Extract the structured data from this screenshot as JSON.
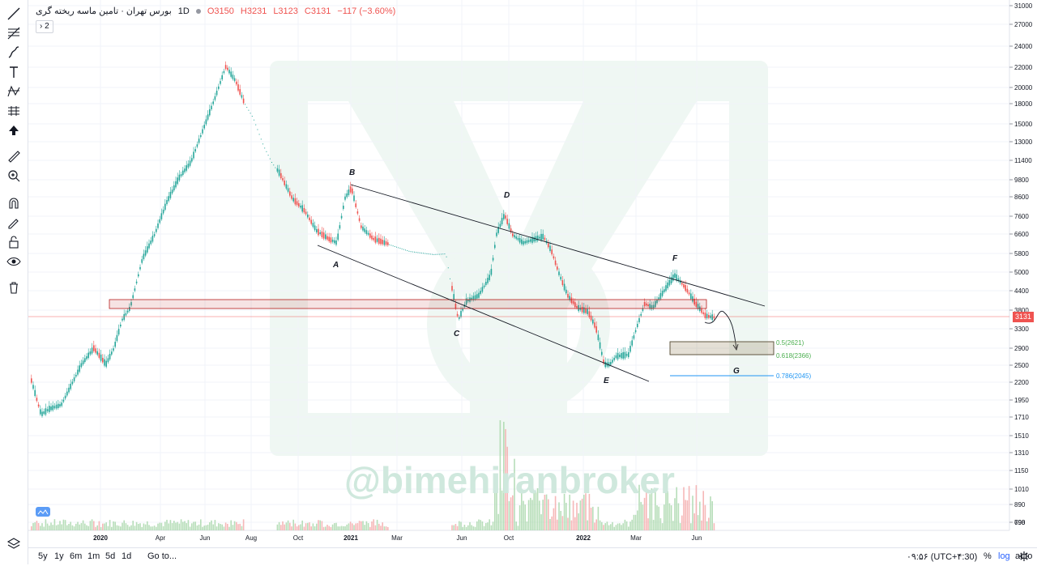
{
  "legend": {
    "symbol": "بورس تهران · تامین ماسه ریخته گری",
    "interval": "1D",
    "open": "O3150",
    "high": "H3231",
    "low": "L3123",
    "close": "C3131",
    "change": "−117 (−3.60%)"
  },
  "study_count": "› 2",
  "price_axis": {
    "labels": [
      "31000",
      "27000",
      "24000",
      "22000",
      "20000",
      "18000",
      "15000",
      "13000",
      "11400",
      "9800",
      "8600",
      "7600",
      "6600",
      "5800",
      "5000",
      "4400",
      "3800",
      "3300",
      "2900",
      "2500",
      "2200",
      "1950",
      "1710",
      "1510",
      "1310",
      "1150",
      "1010",
      "890",
      "790",
      "698"
    ],
    "last_price": "3131",
    "last_price_color": "#ef5350"
  },
  "time_axis": {
    "labels": [
      "2020",
      "Apr",
      "Jun",
      "Aug",
      "Oct",
      "2021",
      "Mar",
      "Jun",
      "Oct",
      "2022",
      "Mar",
      "Jun"
    ]
  },
  "wave_labels": [
    "A",
    "B",
    "C",
    "D",
    "E",
    "F",
    "G"
  ],
  "fib_levels": [
    {
      "label": "0.5(2621)",
      "color": "#4caf50"
    },
    {
      "label": "0.618(2366)",
      "color": "#4caf50"
    },
    {
      "label": "0.786(2045)",
      "color": "#2196f3"
    }
  ],
  "watermark_text": "@bimehiranbroker",
  "bottom_bar": {
    "ranges": [
      "5y",
      "1y",
      "6m",
      "1m",
      "5d",
      "1d"
    ],
    "goto": "Go to...",
    "time": "۰۹:۵۶ (UTC+۴:30)",
    "percent": "%",
    "log": "log",
    "auto": "auto"
  },
  "colors": {
    "up": "#26a69a",
    "down": "#ef5350",
    "trend": "#131722",
    "zone": "#b71c1c"
  }
}
